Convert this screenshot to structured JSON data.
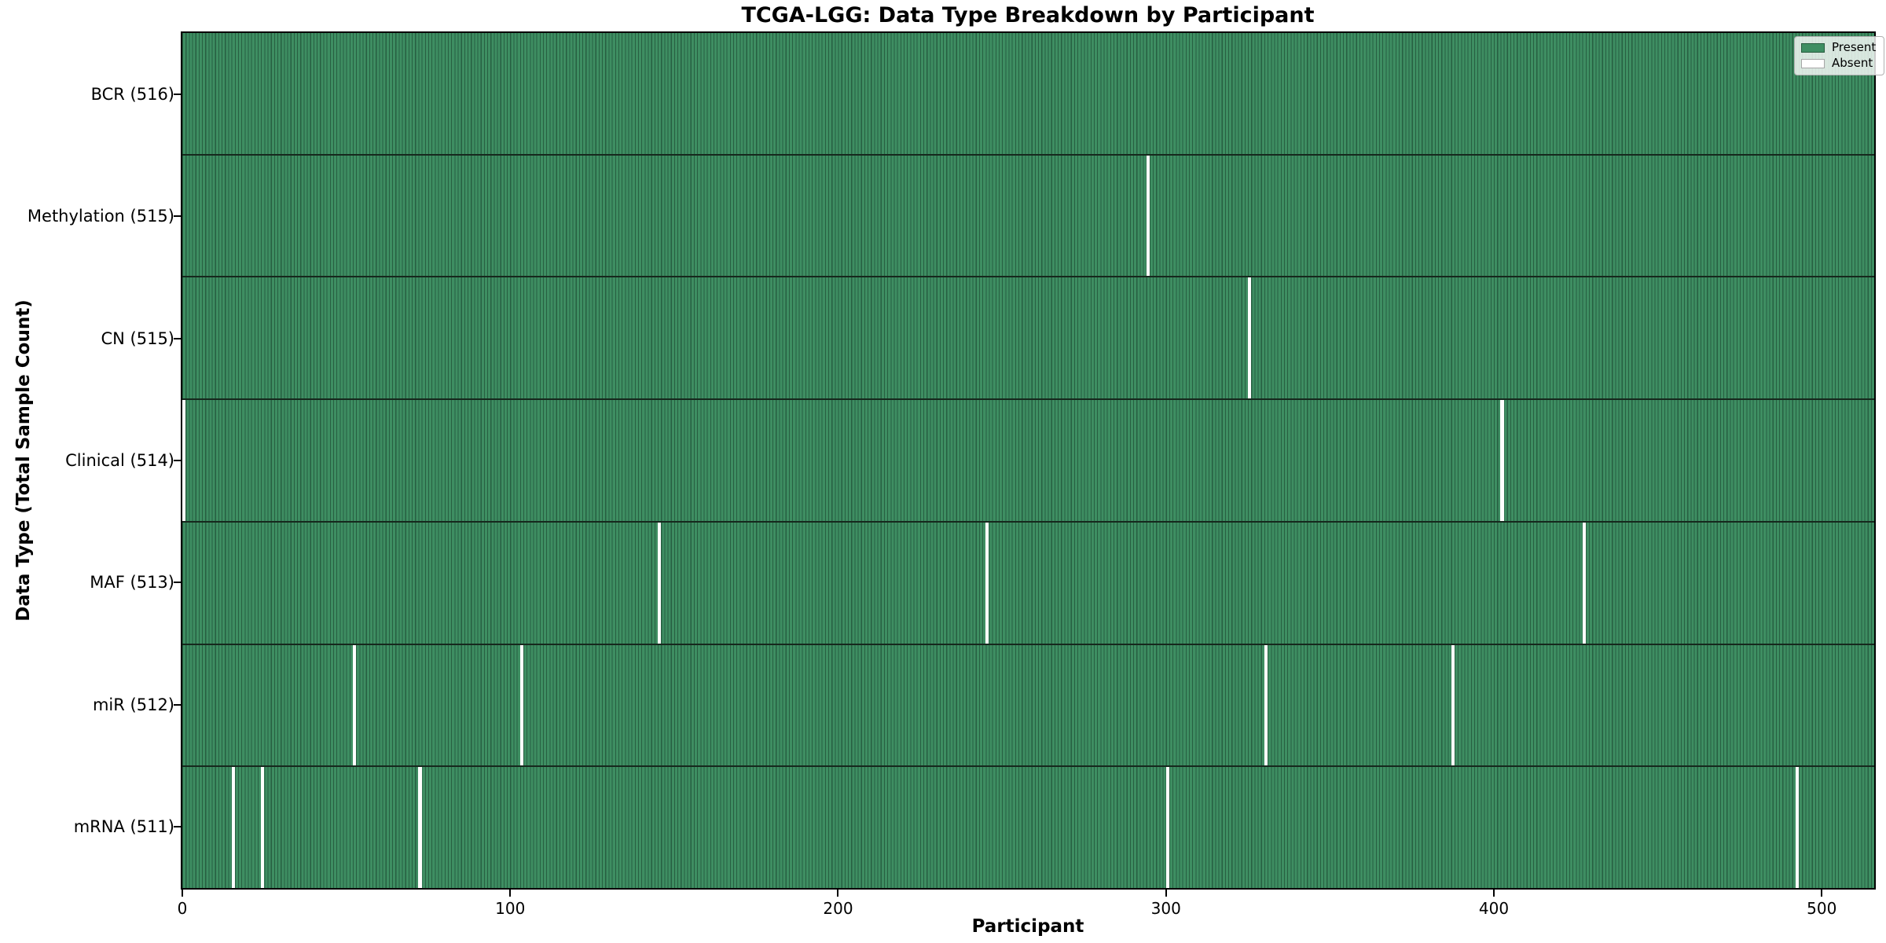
{
  "figure": {
    "title": "TCGA-LGG: Data Type Breakdown by Participant"
  },
  "chart_data": {
    "type": "heatmap",
    "title": "TCGA-LGG: Data Type Breakdown by Participant",
    "xlabel": "Participant",
    "ylabel": "Data Type (Total Sample Count)",
    "x_ticks": [
      0,
      100,
      200,
      300,
      400,
      500
    ],
    "x_range": [
      0,
      516
    ],
    "n_participants": 516,
    "grid": false,
    "cell_values": {
      "present": 1,
      "absent": 0
    },
    "rows": [
      {
        "data_type": "BCR",
        "label": "BCR (516)",
        "total": 516,
        "absent_participants": []
      },
      {
        "data_type": "Methylation",
        "label": "Methylation (515)",
        "total": 515,
        "absent_participants": [
          294
        ]
      },
      {
        "data_type": "CN",
        "label": "CN (515)",
        "total": 515,
        "absent_participants": [
          325
        ]
      },
      {
        "data_type": "Clinical",
        "label": "Clinical (514)",
        "total": 514,
        "absent_participants": [
          0,
          402
        ]
      },
      {
        "data_type": "MAF",
        "label": "MAF (513)",
        "total": 513,
        "absent_participants": [
          145,
          245,
          427
        ]
      },
      {
        "data_type": "miR",
        "label": "miR (512)",
        "total": 512,
        "absent_participants": [
          52,
          103,
          330,
          387
        ]
      },
      {
        "data_type": "mRNA",
        "label": "mRNA (511)",
        "total": 511,
        "absent_participants": [
          15,
          24,
          72,
          300,
          492
        ]
      }
    ],
    "legend": {
      "position": "upper right",
      "entries": [
        {
          "label": "Present",
          "color": "#3e8e62"
        },
        {
          "label": "Absent",
          "color": "#ffffff"
        }
      ]
    },
    "colors": {
      "present": "#3e8e62",
      "absent": "#ffffff",
      "cell_edge": "#275f41",
      "row_divider": "#16281d",
      "spine": "#000000"
    }
  }
}
